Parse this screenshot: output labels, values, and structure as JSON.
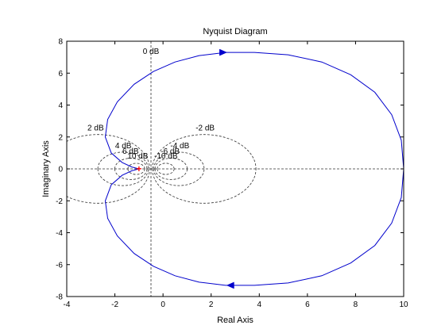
{
  "chart_data": {
    "type": "line",
    "title": "Nyquist Diagram",
    "xlabel": "Real Axis",
    "ylabel": "Imaginary Axis",
    "xlim": [
      -4,
      10
    ],
    "ylim": [
      -8,
      8
    ],
    "grid": "M-circles",
    "xticks": [
      -4,
      -2,
      0,
      2,
      4,
      6,
      8,
      10
    ],
    "yticks": [
      -8,
      -6,
      -4,
      -2,
      0,
      2,
      4,
      6,
      8
    ],
    "xtick_labels": [
      "-4",
      "-2",
      "0",
      "2",
      "4",
      "6",
      "8",
      "10"
    ],
    "ytick_labels": [
      "-8",
      "-6",
      "-4",
      "-2",
      "0",
      "2",
      "4",
      "6",
      "8"
    ],
    "m_circles": [
      {
        "label": "0 dB",
        "db": 0
      },
      {
        "label": "2 dB",
        "db": 2
      },
      {
        "label": "-2 dB",
        "db": -2
      },
      {
        "label": "4 dB",
        "db": 4
      },
      {
        "label": "-4 dB",
        "db": -4
      },
      {
        "label": "6 dB",
        "db": 6
      },
      {
        "label": "-6 dB",
        "db": -6
      },
      {
        "label": "10 dB",
        "db": 10
      },
      {
        "label": "-10 dB",
        "db": -10
      }
    ],
    "series": [
      {
        "color": "#0000cc",
        "points": [
          [
            10,
            0
          ],
          [
            9.9,
            1.8
          ],
          [
            9.5,
            3.4
          ],
          [
            8.8,
            4.8
          ],
          [
            7.8,
            5.9
          ],
          [
            6.6,
            6.7
          ],
          [
            5.2,
            7.15
          ],
          [
            3.8,
            7.3
          ],
          [
            2.6,
            7.3
          ],
          [
            1.5,
            7.1
          ],
          [
            0.5,
            6.7
          ],
          [
            -0.4,
            6.1
          ],
          [
            -1.2,
            5.3
          ],
          [
            -1.9,
            4.2
          ],
          [
            -2.3,
            3.1
          ],
          [
            -2.4,
            2.0
          ],
          [
            -2.15,
            1.0
          ],
          [
            -1.7,
            0.4
          ],
          [
            -1.3,
            0.12
          ],
          [
            -1.0,
            0
          ],
          [
            -1.3,
            -0.12
          ],
          [
            -1.7,
            -0.4
          ],
          [
            -2.15,
            -1.0
          ],
          [
            -2.4,
            -2.0
          ],
          [
            -2.3,
            -3.1
          ],
          [
            -1.9,
            -4.2
          ],
          [
            -1.2,
            -5.3
          ],
          [
            -0.4,
            -6.1
          ],
          [
            0.5,
            -6.7
          ],
          [
            1.5,
            -7.1
          ],
          [
            2.6,
            -7.3
          ],
          [
            3.8,
            -7.3
          ],
          [
            5.2,
            -7.15
          ],
          [
            6.6,
            -6.7
          ],
          [
            7.8,
            -5.9
          ],
          [
            8.8,
            -4.8
          ],
          [
            9.5,
            -3.4
          ],
          [
            9.9,
            -1.8
          ],
          [
            10,
            0
          ]
        ],
        "arrows": [
          {
            "x": 2.5,
            "y": 7.3,
            "direction": "right"
          },
          {
            "x": 2.8,
            "y": -7.3,
            "direction": "left"
          }
        ]
      }
    ],
    "critical_point": {
      "x": -1,
      "y": 0,
      "color": "#ff0000"
    }
  }
}
